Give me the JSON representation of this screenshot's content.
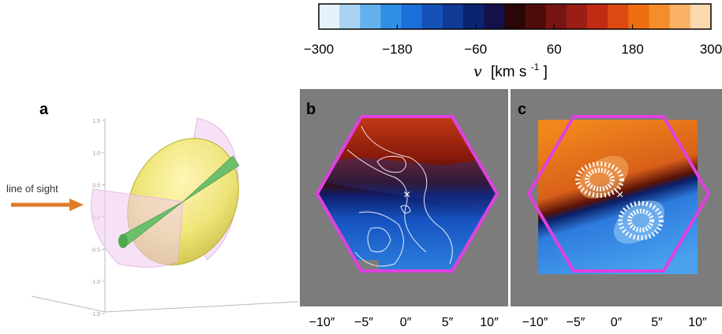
{
  "colorbar": {
    "ticks": [
      "−300",
      "−180",
      "−60",
      "60",
      "180",
      "300"
    ],
    "tick_values": [
      -300,
      -180,
      -60,
      60,
      180,
      300
    ],
    "range": [
      -300,
      300
    ],
    "swatches": [
      "#e6f2fb",
      "#a9d3f2",
      "#63b1ec",
      "#2f8fe4",
      "#1b6fd8",
      "#1452b8",
      "#0f3a96",
      "#0a2470",
      "#14104a",
      "#2a0606",
      "#4f0d0a",
      "#761511",
      "#9c1d14",
      "#c12b14",
      "#de4a12",
      "#ee6e12",
      "#f58d2a",
      "#f9b266",
      "#fcd9ae"
    ],
    "label_symbol": "v",
    "label_unit": "[km s",
    "label_exp": "-1",
    "label_close": "]"
  },
  "panel_a": {
    "letter": "a",
    "arrow_text": "line of sight",
    "arrow_color": "#e07b28",
    "yticks": [
      "1.5",
      "1.0",
      "0.5",
      "0.0",
      "-0.5",
      "-1.0",
      "-1.5"
    ]
  },
  "panel_b": {
    "letter": "b",
    "xticks": [
      "−10″",
      "−5″",
      "0″",
      "5″",
      "10″"
    ],
    "marker": "×"
  },
  "panel_c": {
    "letter": "c",
    "xticks": [
      "−10″",
      "−5″",
      "0″",
      "5″",
      "10″"
    ],
    "marker": "×"
  },
  "colors": {
    "hexagon": "#e040e0",
    "panel_bg": "#7c7c7c",
    "redshift": "#8b1a0e",
    "blueshift": "#1a5fc8"
  }
}
